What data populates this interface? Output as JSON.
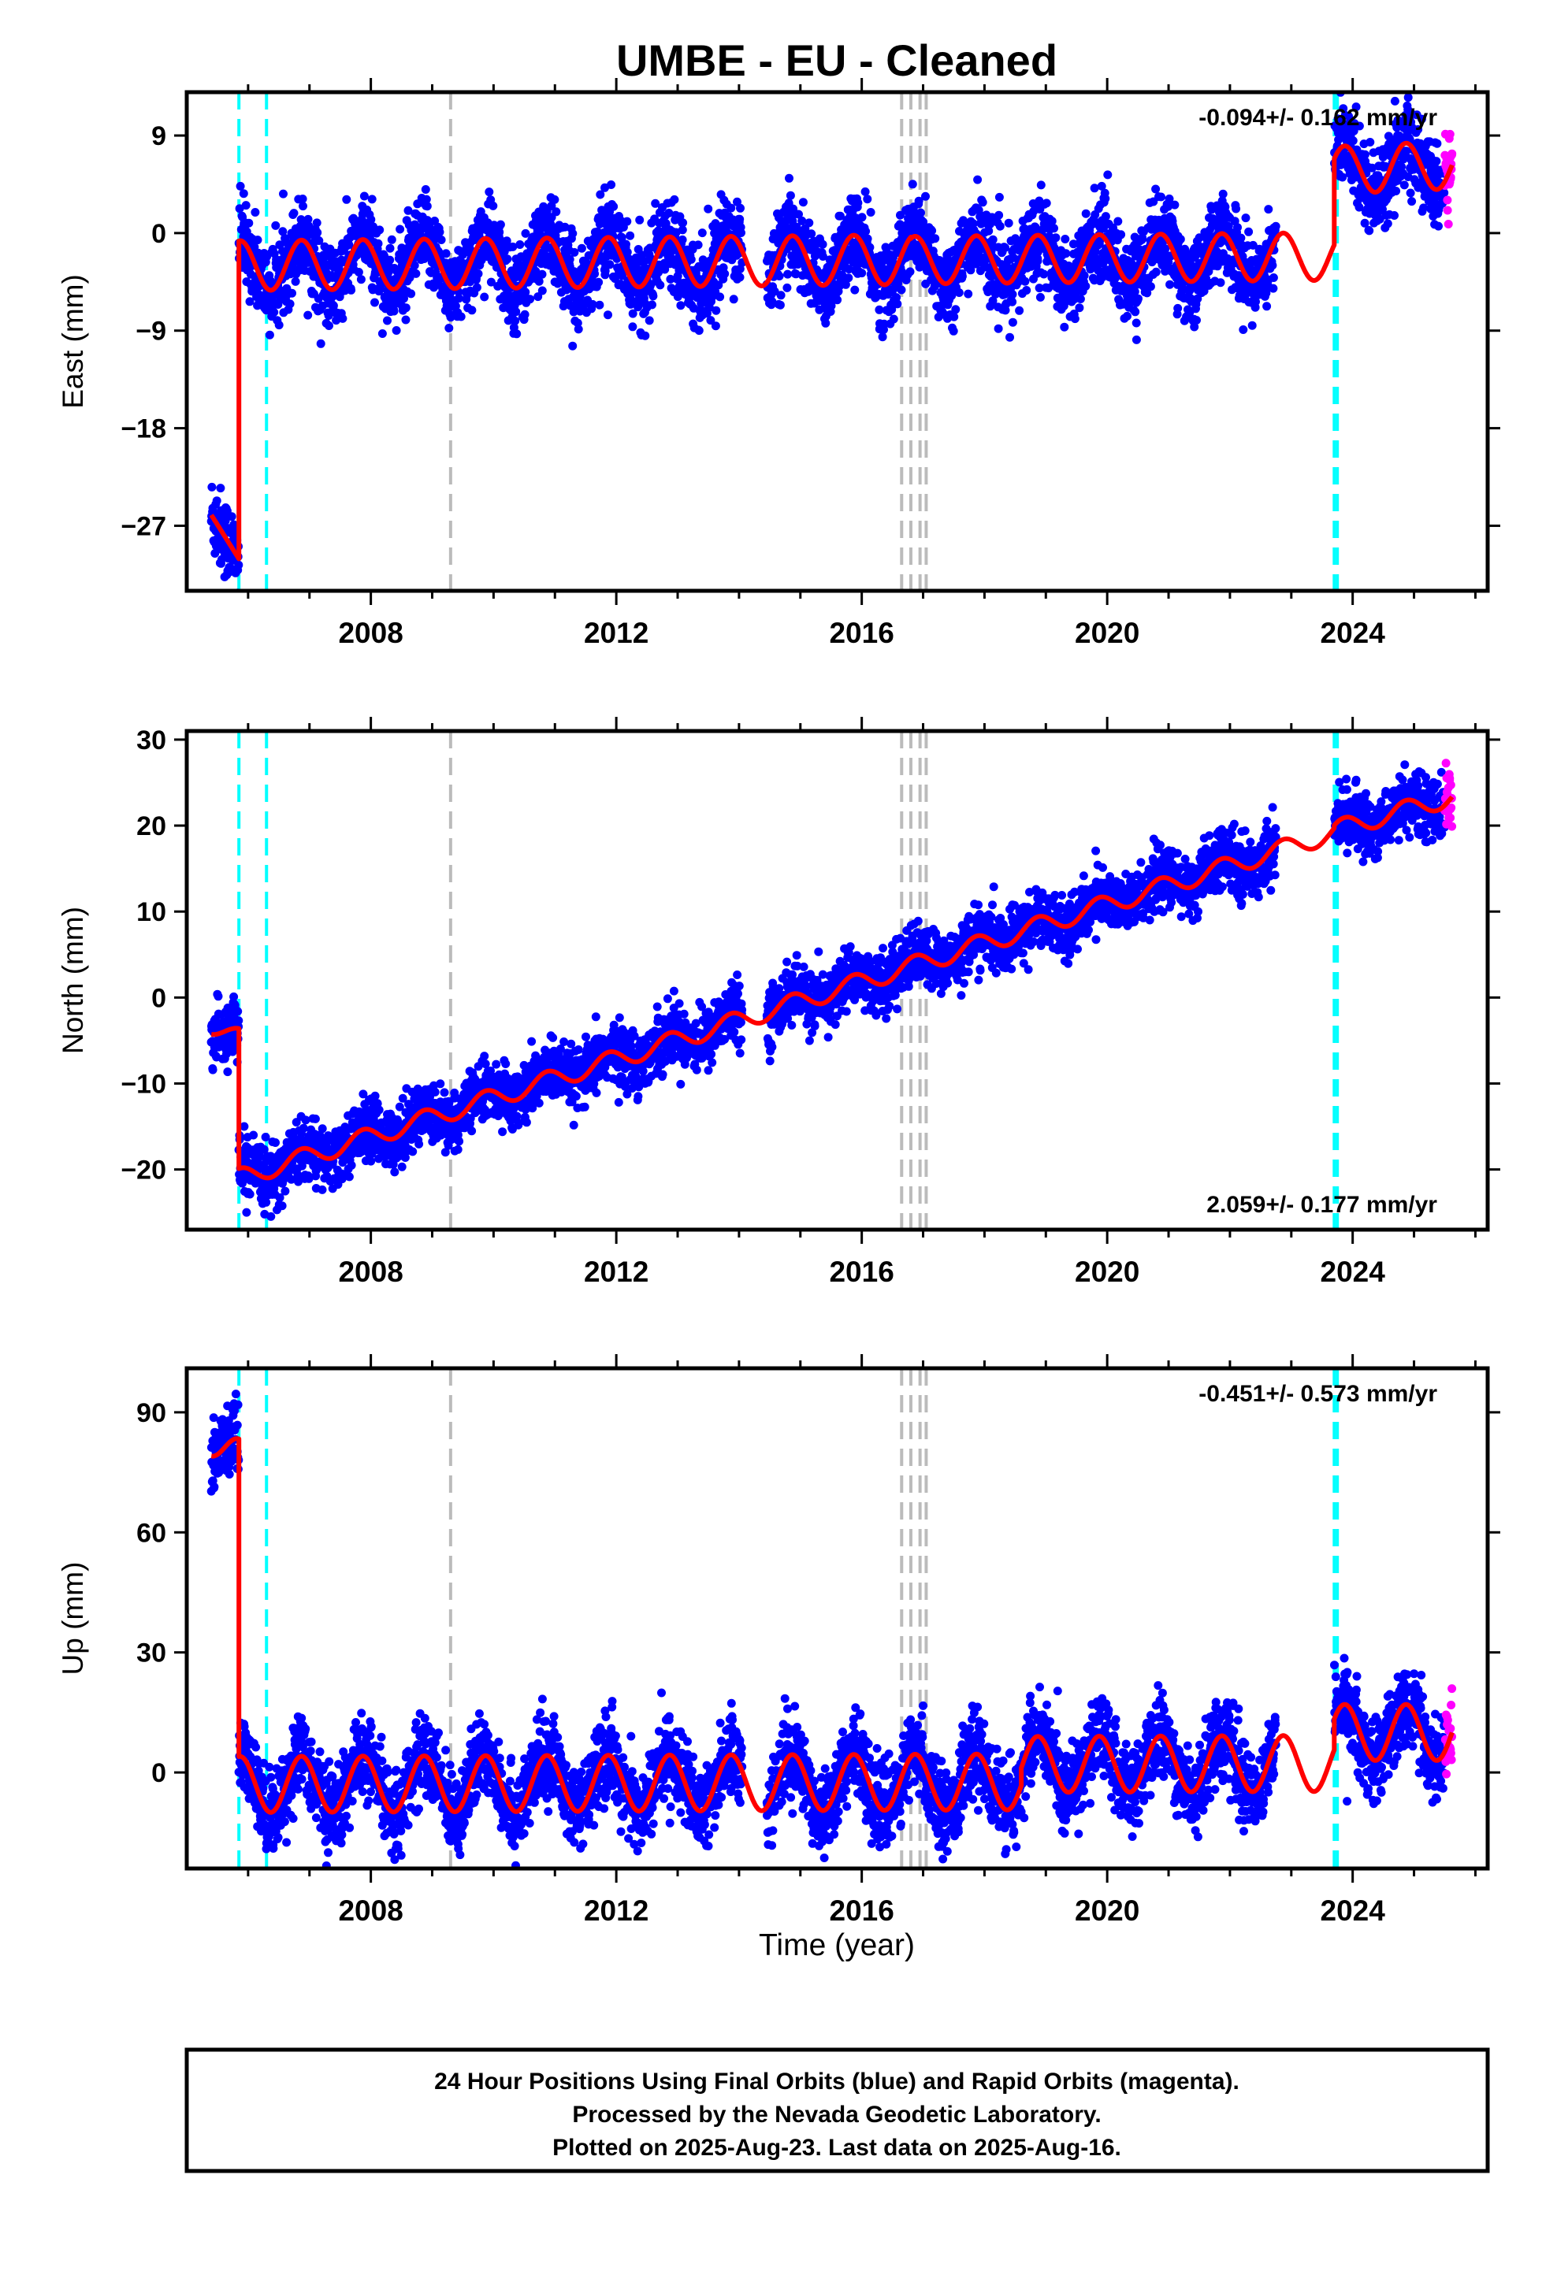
{
  "chart_data": {
    "type": "scatter",
    "title": "UMBE  - EU - Cleaned",
    "xlabel": "Time (year)",
    "xlim": [
      2005.0,
      2026.2
    ],
    "x_ticks": [
      "2008",
      "2012",
      "2016",
      "2020",
      "2024"
    ],
    "colors": {
      "final_orbits": "#0000ff",
      "rapid_orbits": "#ff00ff",
      "model_fit": "#ff0000",
      "equipment_change_lines": "#00ffff",
      "earthquake_lines": "#bbbbbb",
      "frame": "#000000"
    },
    "event_lines": {
      "cyan": [
        2005.85,
        2006.3,
        2023.7,
        2023.75
      ],
      "gray": [
        2009.3,
        2016.65,
        2016.8,
        2016.95,
        2017.05
      ]
    },
    "panels": [
      {
        "name": "east",
        "ylabel": "East (mm)",
        "ylim": [
          -33,
          13
        ],
        "y_ticks": [
          "9",
          "0",
          "−9",
          "−18",
          "−27"
        ],
        "rate_text": "-0.094+/- 0.162 mm/yr",
        "rate_position": "top-right",
        "model": {
          "segments": [
            {
              "x_start": 2005.4,
              "x_end": 2005.85,
              "y0": -26.0,
              "slope": -9.0,
              "amp": 0.0
            },
            {
              "x_start": 2005.85,
              "x_end": 2016.8,
              "y0": -3.0,
              "slope": 0.05,
              "amp": 2.3
            },
            {
              "x_start": 2016.8,
              "x_end": 2023.7,
              "y0": -2.5,
              "slope": 0.05,
              "amp": 2.2
            },
            {
              "x_start": 2023.7,
              "x_end": 2025.62,
              "y0": 5.8,
              "slope": 0.25,
              "amp": 2.2
            }
          ],
          "period_years": 1.0,
          "phase_years": 0.62
        },
        "scatter": {
          "noise": 1.9,
          "gaps": [
            [
              2014.05,
              2014.45
            ],
            [
              2022.75,
              2023.7
            ]
          ]
        }
      },
      {
        "name": "north",
        "ylabel": "North (mm)",
        "ylim": [
          -27,
          31
        ],
        "y_ticks": [
          "30",
          "20",
          "10",
          "0",
          "−10",
          "−20"
        ],
        "rate_text": "2.059+/- 0.177 mm/yr",
        "rate_position": "bottom-right",
        "model": {
          "segments": [
            {
              "x_start": 2005.4,
              "x_end": 2005.85,
              "y0": -3.5,
              "slope": -2.0,
              "amp": 0.8
            },
            {
              "x_start": 2005.85,
              "x_end": 2023.7,
              "y0": -21.0,
              "slope": 2.25,
              "amp": 1.1
            },
            {
              "x_start": 2023.7,
              "x_end": 2025.62,
              "y0": 19.5,
              "slope": 2.0,
              "amp": 1.1
            }
          ],
          "period_years": 1.0,
          "phase_years": 0.62
        },
        "scatter": {
          "noise": 1.7,
          "gaps": [
            [
              2014.05,
              2014.45
            ],
            [
              2022.75,
              2023.7
            ]
          ]
        }
      },
      {
        "name": "up",
        "ylabel": "Up (mm)",
        "ylim": [
          -24,
          101
        ],
        "y_ticks": [
          "90",
          "60",
          "30",
          "0"
        ],
        "rate_text": "-0.451+/- 0.573 mm/yr",
        "rate_position": "top-right",
        "model": {
          "segments": [
            {
              "x_start": 2005.4,
              "x_end": 2005.85,
              "y0": 83.0,
              "slope": -8.0,
              "amp": 4.0
            },
            {
              "x_start": 2005.85,
              "x_end": 2018.6,
              "y0": -3.0,
              "slope": 0.05,
              "amp": 7.0
            },
            {
              "x_start": 2018.6,
              "x_end": 2023.7,
              "y0": 2.0,
              "slope": 0.05,
              "amp": 7.0
            },
            {
              "x_start": 2023.7,
              "x_end": 2025.62,
              "y0": 10.0,
              "slope": 0.0,
              "amp": 7.0
            }
          ],
          "period_years": 1.0,
          "phase_years": 0.62
        },
        "scatter": {
          "noise": 5.0,
          "gaps": [
            [
              2014.05,
              2014.45
            ],
            [
              2022.75,
              2023.7
            ]
          ]
        }
      }
    ],
    "rapid_orbits_from": 2025.5
  },
  "footer": {
    "lines": [
      "24 Hour Positions Using Final Orbits (blue) and Rapid Orbits (magenta).",
      "Processed by the Nevada Geodetic Laboratory.",
      "Plotted on 2025-Aug-23. Last data on 2025-Aug-16."
    ]
  }
}
